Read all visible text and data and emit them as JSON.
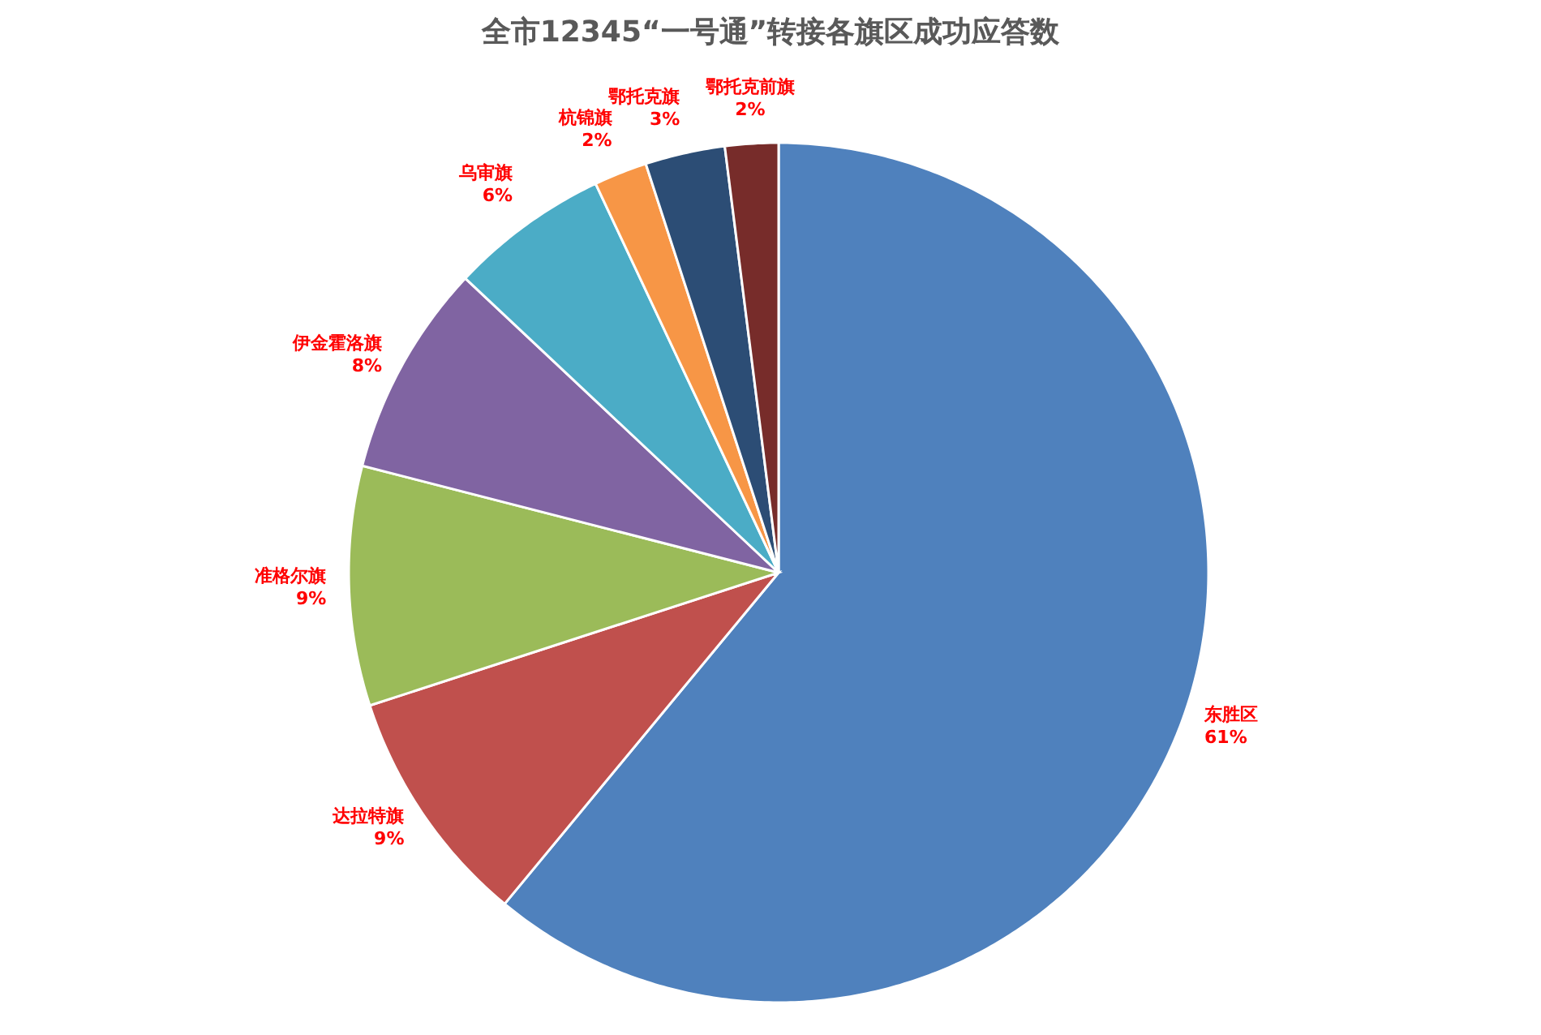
{
  "chart_data": {
    "type": "pie",
    "title": "全市12345“一号通”转接各旗区成功应答数",
    "categories": [
      "东胜区",
      "达拉特旗",
      "准格尔旗",
      "伊金霍洛旗",
      "乌审旗",
      "杭锦旗",
      "鄂托克旗",
      "鄂托克前旗"
    ],
    "values": [
      61,
      9,
      9,
      8,
      6,
      2,
      3,
      2
    ],
    "value_labels": [
      "61%",
      "9%",
      "9%",
      "8%",
      "6%",
      "2%",
      "3%",
      "2%"
    ],
    "colors": [
      "#4f81bd",
      "#c0504d",
      "#9bbb59",
      "#8064a2",
      "#4bacc6",
      "#f79646",
      "#2c4d75",
      "#772c2a"
    ]
  }
}
